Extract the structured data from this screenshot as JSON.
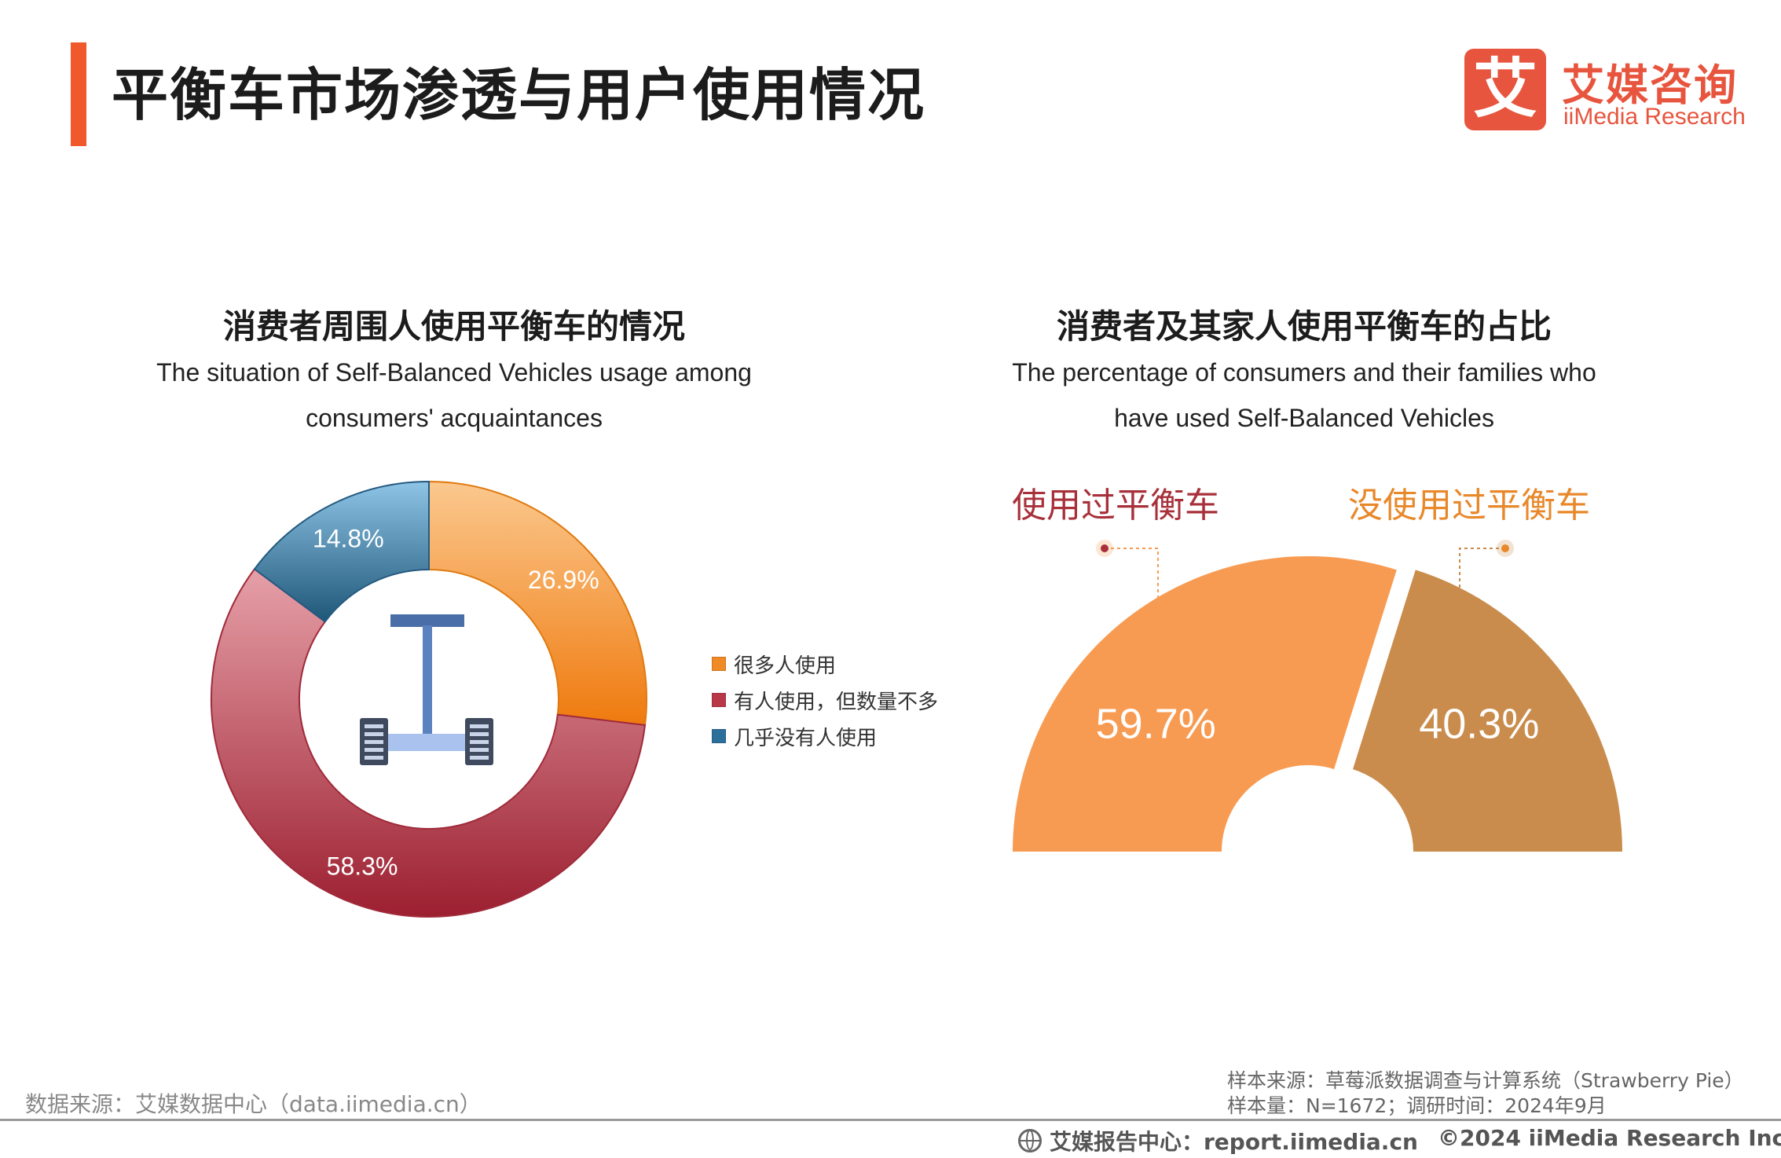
{
  "header": {
    "title": "平衡车市场渗透与用户使用情况",
    "logo_mark": "艾",
    "logo_cn": "艾媒咨询",
    "logo_en": "iiMedia Research",
    "accent_color": "#f0592b"
  },
  "chart_data": [
    {
      "type": "pie",
      "variant": "donut",
      "title": "消费者周围人使用平衡车的情况",
      "subtitle_lines": [
        "The situation of Self-Balanced Vehicles usage among",
        "consumers' acquaintances"
      ],
      "series": [
        {
          "name": "很多人使用",
          "value": 26.9,
          "label": "26.9%",
          "color": "#f08a24"
        },
        {
          "name": "有人使用，但数量不多",
          "value": 58.3,
          "label": "58.3%",
          "color": "#b8384a"
        },
        {
          "name": "几乎没有人使用",
          "value": 14.8,
          "label": "14.8%",
          "color": "#2d6f9b"
        }
      ],
      "legend_position": "right",
      "center_icon": "self-balancing-scooter-icon"
    },
    {
      "type": "pie",
      "variant": "half-donut",
      "title": "消费者及其家人使用平衡车的占比",
      "subtitle_lines": [
        "The percentage of consumers and their families who",
        "have used Self-Balanced Vehicles"
      ],
      "series": [
        {
          "name": "使用过平衡车",
          "value": 59.7,
          "label": "59.7%",
          "color": "#f89b52",
          "label_color": "#a8303a"
        },
        {
          "name": "没使用过平衡车",
          "value": 40.3,
          "label": "40.3%",
          "color": "#c98c4c",
          "label_color": "#e8882a"
        }
      ]
    }
  ],
  "footer": {
    "source": "数据来源：艾媒数据中心（data.iimedia.cn）",
    "sample_source": "样本来源：草莓派数据调查与计算系统（Strawberry Pie）",
    "sample_size": "样本量：N=1672；调研时间：2024年9月",
    "report_center": "艾媒报告中心：report.iimedia.cn",
    "copyright": "©2024  iiMedia Research  Inc"
  }
}
